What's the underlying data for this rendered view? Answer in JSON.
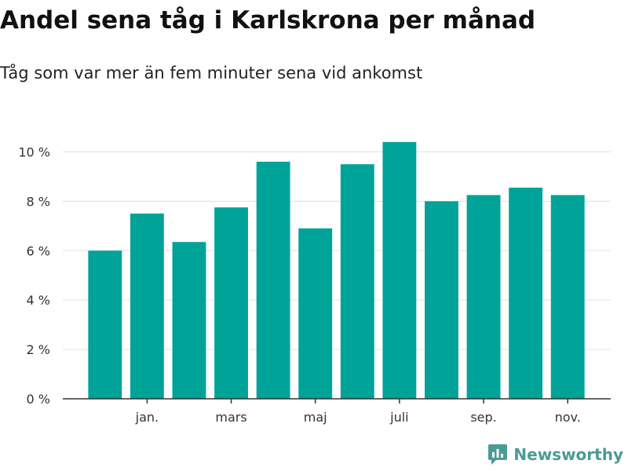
{
  "chart_data": {
    "type": "bar",
    "title": "Andel sena tåg i Karlskrona per månad",
    "subtitle": "Tåg som var mer än fem minuter sena vid ankomst",
    "xlabel": "",
    "ylabel": "",
    "ylim": [
      0,
      11
    ],
    "yticks": [
      0,
      2,
      4,
      6,
      8,
      10
    ],
    "ytick_labels": [
      "0 %",
      "2 %",
      "4 %",
      "6 %",
      "8 %",
      "10 %"
    ],
    "xtick_labels": [
      {
        "index": 1,
        "label": "jan."
      },
      {
        "index": 3,
        "label": "mars"
      },
      {
        "index": 5,
        "label": "maj"
      },
      {
        "index": 7,
        "label": "juli"
      },
      {
        "index": 9,
        "label": "sep."
      },
      {
        "index": 11,
        "label": "nov."
      }
    ],
    "series": [
      {
        "name": "Andel sena tåg",
        "values": [
          6.0,
          7.5,
          6.35,
          7.75,
          9.6,
          6.9,
          9.5,
          10.4,
          8.0,
          8.25,
          8.55,
          8.25
        ]
      }
    ],
    "grid": true,
    "bar_color": "#00a398"
  },
  "brand": {
    "name": "Newsworthy",
    "color": "#4a9b95"
  }
}
